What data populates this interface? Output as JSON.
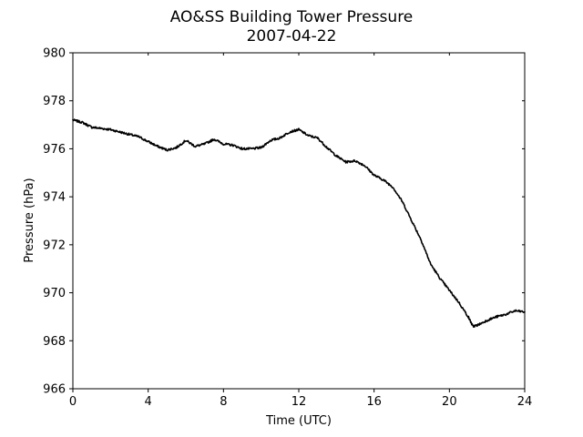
{
  "chart_data": {
    "type": "line",
    "title": "AO&SS Building Tower Pressure",
    "subtitle": "2007-04-22",
    "xlabel": "Time (UTC)",
    "ylabel": "Pressure (hPa)",
    "xlim": [
      0,
      24
    ],
    "ylim": [
      966,
      980
    ],
    "xticks": [
      "0",
      "4",
      "8",
      "12",
      "16",
      "20",
      "24"
    ],
    "yticks": [
      "966",
      "968",
      "970",
      "972",
      "974",
      "976",
      "978",
      "980"
    ],
    "grid": false,
    "legend": "none",
    "line_color": "#000000",
    "series": [
      {
        "x": [
          0,
          0.5,
          1,
          1.5,
          2,
          2.5,
          3,
          3.5,
          4,
          4.5,
          5,
          5.5,
          6,
          6.5,
          7,
          7.5,
          8,
          8.5,
          9,
          9.5,
          10,
          10.5,
          11,
          11.5,
          12,
          12.5,
          13,
          13.5,
          14,
          14.5,
          15,
          15.5,
          16,
          16.5,
          17,
          17.5,
          18,
          18.5,
          19,
          19.5,
          20,
          20.5,
          21,
          21.25,
          21.5,
          22,
          22.5,
          23,
          23.5,
          24
        ],
        "y": [
          977.2,
          977.1,
          976.9,
          976.85,
          976.8,
          976.7,
          976.6,
          976.5,
          976.3,
          976.1,
          975.95,
          976.05,
          976.35,
          976.1,
          976.2,
          976.4,
          976.2,
          976.15,
          976.0,
          976.0,
          976.05,
          976.35,
          976.45,
          976.7,
          976.8,
          976.55,
          976.45,
          976.05,
          975.7,
          975.45,
          975.5,
          975.3,
          974.9,
          974.7,
          974.4,
          973.8,
          973.0,
          972.2,
          971.2,
          970.6,
          970.1,
          969.6,
          969.0,
          968.6,
          968.65,
          968.85,
          969.0,
          969.1,
          969.25,
          969.2
        ]
      }
    ]
  }
}
